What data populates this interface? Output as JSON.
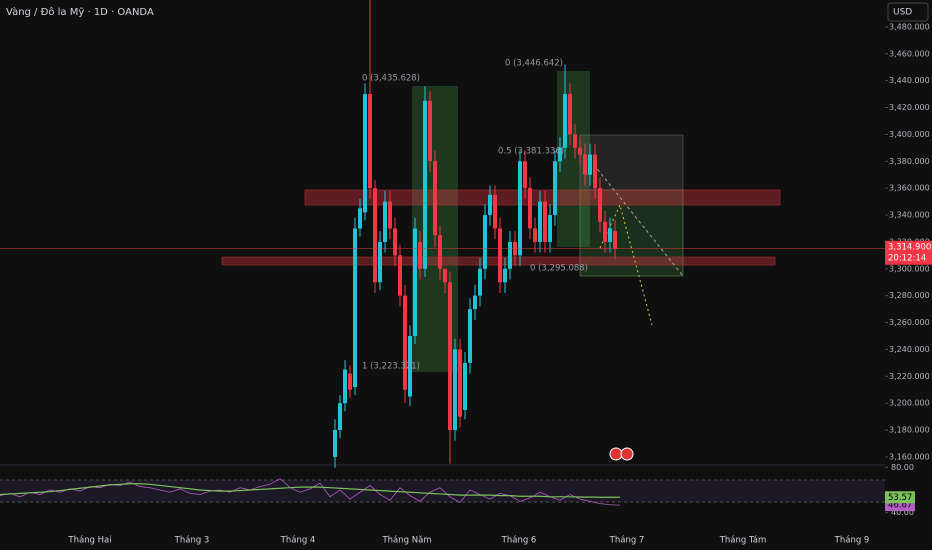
{
  "chart_data": {
    "type": "candlestick",
    "title": "Vàng / Đô la Mỹ · 1D · OANDA",
    "currency": "USD",
    "up_color": "#22c3d6",
    "down_color": "#f23645",
    "open": [
      3160,
      3180,
      3200,
      3222,
      3212,
      3330,
      3342,
      3430,
      3360,
      3290,
      3320,
      3350,
      3330,
      3310,
      3280,
      3205,
      3250,
      3320,
      3300,
      3425,
      3380,
      3325,
      3300,
      3290,
      3180,
      3240,
      3195,
      3230,
      3270,
      3280,
      3300,
      3340,
      3355,
      3330,
      3290,
      3300,
      3320,
      3310,
      3380,
      3360,
      3330,
      3320,
      3350,
      3320,
      3340,
      3380,
      3390,
      3430,
      3400,
      3390,
      3385,
      3370,
      3385,
      3360,
      3335,
      3320,
      3328
    ],
    "high": [
      3188,
      3206,
      3232,
      3228,
      3338,
      3352,
      3438,
      3500,
      3366,
      3328,
      3358,
      3358,
      3338,
      3318,
      3288,
      3258,
      3338,
      3328,
      3436,
      3432,
      3388,
      3332,
      3298,
      3298,
      3248,
      3248,
      3238,
      3278,
      3288,
      3308,
      3348,
      3362,
      3362,
      3338,
      3308,
      3328,
      3328,
      3388,
      3388,
      3368,
      3338,
      3358,
      3358,
      3348,
      3388,
      3398,
      3452,
      3438,
      3408,
      3398,
      3393,
      3393,
      3393,
      3368,
      3343,
      3338,
      3336
    ],
    "low": [
      3152,
      3174,
      3194,
      3204,
      3206,
      3324,
      3336,
      3352,
      3282,
      3284,
      3312,
      3322,
      3302,
      3272,
      3200,
      3198,
      3244,
      3292,
      3294,
      3372,
      3316,
      3292,
      3282,
      3155,
      3172,
      3182,
      3188,
      3222,
      3262,
      3272,
      3292,
      3332,
      3322,
      3282,
      3282,
      3292,
      3302,
      3302,
      3352,
      3322,
      3312,
      3312,
      3312,
      3312,
      3332,
      3372,
      3382,
      3392,
      3382,
      3377,
      3362,
      3362,
      3352,
      3327,
      3312,
      3312,
      3307
    ],
    "close": [
      3180,
      3200,
      3225,
      3210,
      3330,
      3345,
      3430,
      3360,
      3290,
      3320,
      3350,
      3330,
      3310,
      3280,
      3210,
      3250,
      3330,
      3300,
      3425,
      3380,
      3325,
      3300,
      3290,
      3180,
      3240,
      3190,
      3230,
      3270,
      3280,
      3300,
      3340,
      3355,
      3330,
      3290,
      3300,
      3320,
      3310,
      3380,
      3360,
      3330,
      3320,
      3350,
      3320,
      3340,
      3380,
      3390,
      3430,
      3400,
      3390,
      3385,
      3370,
      3385,
      3360,
      3335,
      3320,
      3330,
      3315
    ],
    "ylim": [
      3154,
      3500
    ],
    "yticks": [
      {
        "value": 3160,
        "label": "3,160.000"
      },
      {
        "value": 3180,
        "label": "3,180.000"
      },
      {
        "value": 3200,
        "label": "3,200.000"
      },
      {
        "value": 3220,
        "label": "3,220.000"
      },
      {
        "value": 3240,
        "label": "3,240.000"
      },
      {
        "value": 3260,
        "label": "3,260.000"
      },
      {
        "value": 3280,
        "label": "3,280.000"
      },
      {
        "value": 3300,
        "label": "3,300.000"
      },
      {
        "value": 3320,
        "label": "3,320.000"
      },
      {
        "value": 3340,
        "label": "3,340.000"
      },
      {
        "value": 3360,
        "label": "3,360.000"
      },
      {
        "value": 3380,
        "label": "3,380.000"
      },
      {
        "value": 3400,
        "label": "3,400.000"
      },
      {
        "value": 3420,
        "label": "3,420.000"
      },
      {
        "value": 3440,
        "label": "3,440.000"
      },
      {
        "value": 3460,
        "label": "3,460.000"
      },
      {
        "value": 3480,
        "label": "3,480.000"
      }
    ],
    "last_price": {
      "value": 3314.9,
      "label": "3,314.900"
    },
    "countdown": "20:12:14",
    "months": [
      "Tháng Hai",
      "Tháng 3",
      "Tháng 4",
      "Tháng Năm",
      "Tháng 6",
      "Tháng 7",
      "Tháng Tám",
      "Tháng 9"
    ],
    "annotations": [
      "0 (3,435.628)",
      "1 (3,223.321)",
      "0 (3,446.642)",
      "0.5 (3,381.336)",
      "0 (3,295.088)"
    ],
    "rsi": {
      "ylim": [
        31.8,
        82
      ],
      "yticks": [
        {
          "value": 80,
          "label": "80.00"
        },
        {
          "value": 40,
          "label": "40.00"
        }
      ],
      "series": [
        {
          "name": "RSI",
          "color": "#b15fc4",
          "values": [
            55,
            57,
            54,
            58,
            56,
            60,
            58,
            61,
            59,
            63,
            62,
            65,
            64,
            67,
            63,
            62,
            60,
            58,
            61,
            57,
            56,
            59,
            60,
            58,
            62,
            60,
            63,
            65,
            70,
            62,
            58,
            61,
            66,
            54,
            60,
            52,
            58,
            64,
            56,
            51,
            62,
            55,
            50,
            58,
            62,
            54,
            49,
            60,
            56,
            52,
            57,
            55,
            50,
            53,
            58,
            54,
            51,
            56,
            52,
            50,
            48,
            47,
            46.67
          ]
        },
        {
          "name": "Signal",
          "color": "#7cc15a",
          "values": [
            56,
            56.5,
            57,
            57.5,
            58,
            58.5,
            59.5,
            60.5,
            61.5,
            62.5,
            63.5,
            64.5,
            65,
            65.5,
            65.5,
            65,
            64,
            63,
            62,
            61,
            60,
            59.5,
            59,
            59,
            59.5,
            60,
            60.5,
            61,
            61.5,
            62,
            62.5,
            62.5,
            62.5,
            62,
            61.5,
            61,
            60.5,
            60,
            59.5,
            59,
            58.5,
            58,
            57.5,
            57,
            56.5,
            56,
            55.5,
            55.5,
            55.5,
            55.5,
            55,
            55,
            54.5,
            54.5,
            54.5,
            54,
            54,
            54,
            53.8,
            53.7,
            53.6,
            53.6,
            53.57
          ]
        }
      ]
    }
  }
}
